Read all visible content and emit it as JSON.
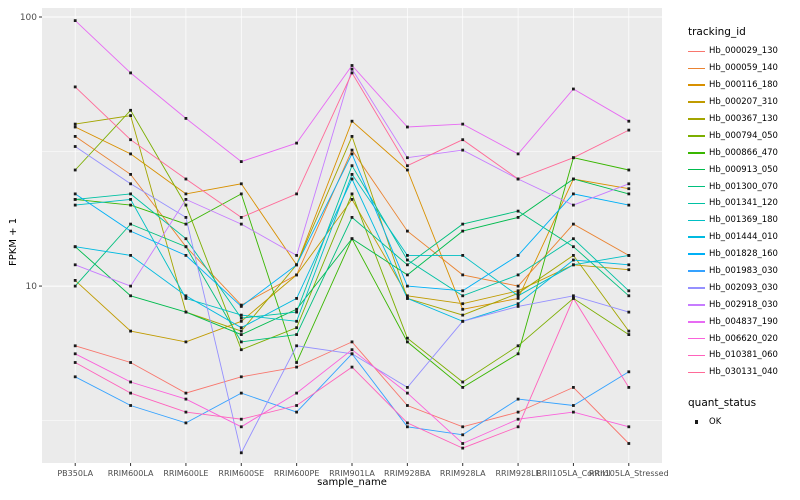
{
  "chart_data": {
    "type": "line",
    "title": "",
    "xlabel": "sample_name",
    "ylabel": "FPKM + 1",
    "yscale": "log10",
    "ylim": [
      2.2,
      108
    ],
    "yticks": [
      10,
      100
    ],
    "minor_gridlines": [
      3.1623,
      31.623
    ],
    "grid": true,
    "panel_color": "#EBEBEB",
    "point_color": "#1a1a1a",
    "legend_position": "right",
    "legend_title": "tracking_id",
    "quant_legend": {
      "title": "quant_status",
      "items": [
        {
          "label": "OK"
        }
      ]
    },
    "categories": [
      "PB350LA",
      "RRIM600LA",
      "RRIM600LE",
      "RRIM600SE",
      "RRIM600PE",
      "RRIM901LA",
      "RRIM928BA",
      "RRIM928LA",
      "RRIM928LE",
      "RRII105LA_Control",
      "RRII105LA_Stressed"
    ],
    "series": [
      {
        "name": "Hb_000029_130",
        "color": "#F8766D",
        "values": [
          6.0,
          5.2,
          4.0,
          4.6,
          5.0,
          6.2,
          3.6,
          3.0,
          3.4,
          4.2,
          2.6
        ]
      },
      {
        "name": "Hb_000059_140",
        "color": "#EA8331",
        "values": [
          36,
          26,
          14,
          8.5,
          11,
          32,
          16,
          11,
          10,
          17,
          13
        ]
      },
      {
        "name": "Hb_000116_180",
        "color": "#D89000",
        "values": [
          39,
          31,
          22,
          24,
          12,
          41,
          27,
          8.2,
          9.0,
          25,
          23
        ]
      },
      {
        "name": "Hb_000207_310",
        "color": "#C09B00",
        "values": [
          10.5,
          6.8,
          6.2,
          7.4,
          11,
          21,
          9.2,
          8.6,
          9.6,
          12,
          11.5
        ]
      },
      {
        "name": "Hb_000367_130",
        "color": "#A3A500",
        "values": [
          40,
          43,
          8.0,
          6.8,
          12,
          36,
          9.0,
          7.8,
          9.4,
          13,
          6.8
        ]
      },
      {
        "name": "Hb_000794_050",
        "color": "#7CAE00",
        "values": [
          27,
          45,
          20,
          5.8,
          7.0,
          22,
          6.4,
          4.4,
          6.0,
          9.0,
          6.6
        ]
      },
      {
        "name": "Hb_000866_470",
        "color": "#39B600",
        "values": [
          21,
          20,
          17,
          22,
          5.2,
          15,
          6.2,
          4.2,
          5.6,
          30,
          27
        ]
      },
      {
        "name": "Hb_000913_050",
        "color": "#00BB4E",
        "values": [
          14,
          9.2,
          8.0,
          6.6,
          8.2,
          15,
          11,
          16,
          18,
          25,
          22
        ]
      },
      {
        "name": "Hb_001300_070",
        "color": "#00BF7D",
        "values": [
          10,
          17,
          14,
          6.2,
          6.6,
          18,
          12,
          17,
          19,
          14,
          9.2
        ]
      },
      {
        "name": "Hb_001341_120",
        "color": "#00C1A3",
        "values": [
          21,
          22,
          15,
          7.6,
          8.0,
          28,
          12.5,
          9.2,
          11,
          15,
          9.6
        ]
      },
      {
        "name": "Hb_001369_180",
        "color": "#00BFC4",
        "values": [
          20,
          21,
          9.0,
          7.8,
          7.4,
          26,
          13,
          13,
          9.2,
          12,
          13
        ]
      },
      {
        "name": "Hb_001444_010",
        "color": "#00BAE0",
        "values": [
          14,
          13,
          9.2,
          7.0,
          9.0,
          25,
          9.0,
          7.4,
          8.6,
          12.5,
          12
        ]
      },
      {
        "name": "Hb_001828_160",
        "color": "#00B0F6",
        "values": [
          22,
          16,
          13,
          8.4,
          12,
          31,
          10,
          9.6,
          13,
          22,
          20
        ]
      },
      {
        "name": "Hb_001983_030",
        "color": "#35A2FF",
        "values": [
          4.6,
          3.6,
          3.1,
          4.0,
          3.4,
          5.6,
          3.0,
          2.8,
          3.8,
          3.6,
          4.8
        ]
      },
      {
        "name": "Hb_002093_030",
        "color": "#9590FF",
        "values": [
          33,
          24,
          18,
          2.4,
          6.0,
          5.6,
          4.2,
          7.4,
          8.4,
          9.2,
          8.0
        ]
      },
      {
        "name": "Hb_002918_030",
        "color": "#C77CFF",
        "values": [
          12,
          10,
          21,
          17,
          13,
          64,
          30,
          32,
          25,
          20,
          24
        ]
      },
      {
        "name": "Hb_004837_190",
        "color": "#E76BF3",
        "values": [
          97,
          62,
          42,
          29,
          34,
          66,
          39,
          40,
          31,
          54,
          41
        ]
      },
      {
        "name": "Hb_006620_020",
        "color": "#FA62DB",
        "values": [
          5.6,
          4.4,
          3.8,
          3.0,
          4.0,
          5.8,
          4.0,
          2.6,
          3.2,
          3.4,
          3.0
        ]
      },
      {
        "name": "Hb_010381_060",
        "color": "#FF62BC",
        "values": [
          5.2,
          4.0,
          3.4,
          3.2,
          3.6,
          5.0,
          3.1,
          2.5,
          3.0,
          9.0,
          4.2
        ]
      },
      {
        "name": "Hb_030131_040",
        "color": "#FF6A98",
        "values": [
          55,
          35,
          25,
          18,
          22,
          62,
          28,
          35,
          25,
          30,
          38
        ]
      }
    ]
  }
}
